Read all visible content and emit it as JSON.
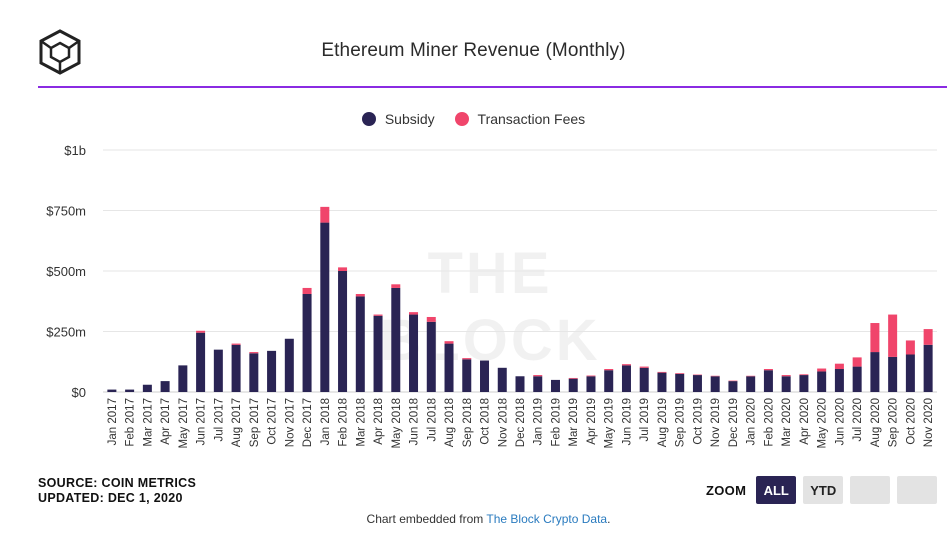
{
  "header": {
    "title": "Ethereum Miner Revenue (Monthly)"
  },
  "footer": {
    "source": "SOURCE: COIN METRICS",
    "updated": "UPDATED: DEC 1, 2020",
    "embed_prefix": "Chart embedded from",
    "embed_link": "The Block Crypto Data",
    "embed_suffix": "."
  },
  "zoom": {
    "label": "ZOOM",
    "all_label": "ALL",
    "ytd_label": "YTD"
  },
  "watermark": "THE BLOCK",
  "colors": {
    "subsidy": "#2a2454",
    "fees": "#f0456b",
    "accent": "#8a2be2"
  },
  "chart_data": {
    "type": "bar",
    "stacked": true,
    "title": "Ethereum Miner Revenue (Monthly)",
    "legend_position": "top-center",
    "grid": true,
    "y_tick_labels": [
      "$0",
      "$250m",
      "$500m",
      "$750m",
      "$1b"
    ],
    "ylim": [
      0,
      1000
    ],
    "y_unit": "$ millions",
    "categories": [
      "Jan 2017",
      "Feb 2017",
      "Mar 2017",
      "Apr 2017",
      "May 2017",
      "Jun 2017",
      "Jul 2017",
      "Aug 2017",
      "Sep 2017",
      "Oct 2017",
      "Nov 2017",
      "Dec 2017",
      "Jan 2018",
      "Feb 2018",
      "Mar 2018",
      "Apr 2018",
      "May 2018",
      "Jun 2018",
      "Jul 2018",
      "Aug 2018",
      "Sep 2018",
      "Oct 2018",
      "Nov 2018",
      "Dec 2018",
      "Jan 2019",
      "Feb 2019",
      "Mar 2019",
      "Apr 2019",
      "May 2019",
      "Jun 2019",
      "Jul 2019",
      "Aug 2019",
      "Sep 2019",
      "Oct 2019",
      "Nov 2019",
      "Dec 2019",
      "Jan 2020",
      "Feb 2020",
      "Mar 2020",
      "Apr 2020",
      "May 2020",
      "Jun 2020",
      "Jul 2020",
      "Aug 2020",
      "Sep 2020",
      "Oct 2020",
      "Nov 2020"
    ],
    "series": [
      {
        "name": "Subsidy",
        "values": [
          10,
          10,
          30,
          45,
          110,
          245,
          175,
          195,
          160,
          170,
          220,
          405,
          700,
          500,
          395,
          315,
          430,
          320,
          290,
          200,
          135,
          130,
          100,
          65,
          65,
          50,
          55,
          65,
          90,
          110,
          100,
          80,
          75,
          70,
          65,
          45,
          65,
          90,
          65,
          70,
          85,
          95,
          105,
          165,
          145,
          155,
          195
        ]
      },
      {
        "name": "Transaction Fees",
        "values": [
          0,
          0,
          0,
          0,
          0,
          8,
          0,
          5,
          5,
          0,
          0,
          25,
          65,
          15,
          10,
          5,
          15,
          10,
          20,
          10,
          5,
          0,
          0,
          0,
          5,
          0,
          3,
          3,
          5,
          5,
          5,
          3,
          3,
          2,
          2,
          2,
          2,
          5,
          5,
          3,
          12,
          22,
          38,
          120,
          175,
          58,
          65
        ]
      }
    ]
  }
}
